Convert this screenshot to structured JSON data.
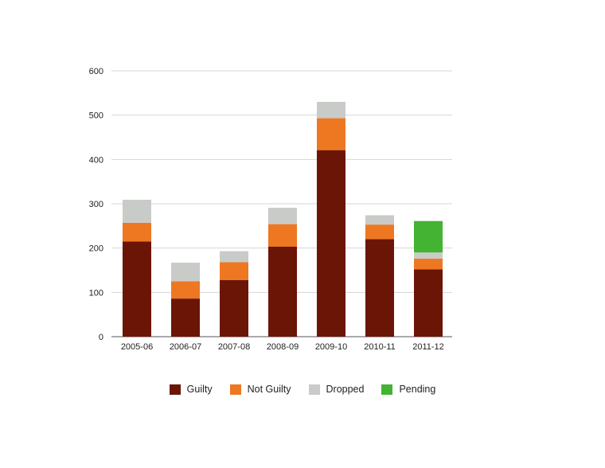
{
  "chart_data": {
    "type": "bar",
    "stacked": true,
    "categories": [
      "2005-06",
      "2006-07",
      "2007-08",
      "2008-09",
      "2009-10",
      "2010-11",
      "2011-12"
    ],
    "series": [
      {
        "name": "Guilty",
        "color": "#6b1506",
        "values": [
          215,
          86,
          128,
          203,
          421,
          220,
          152
        ]
      },
      {
        "name": "Not Guilty",
        "color": "#ee7722",
        "values": [
          42,
          39,
          40,
          51,
          72,
          33,
          24
        ]
      },
      {
        "name": "Dropped",
        "color": "#c9cbc8",
        "values": [
          52,
          42,
          25,
          37,
          37,
          21,
          14
        ]
      },
      {
        "name": "Pending",
        "color": "#44b233",
        "values": [
          0,
          0,
          0,
          0,
          0,
          0,
          71
        ]
      }
    ],
    "ylim": [
      0,
      600
    ],
    "yticks": [
      0,
      100,
      200,
      300,
      400,
      500,
      600
    ],
    "grid": true,
    "legend_position": "bottom"
  }
}
